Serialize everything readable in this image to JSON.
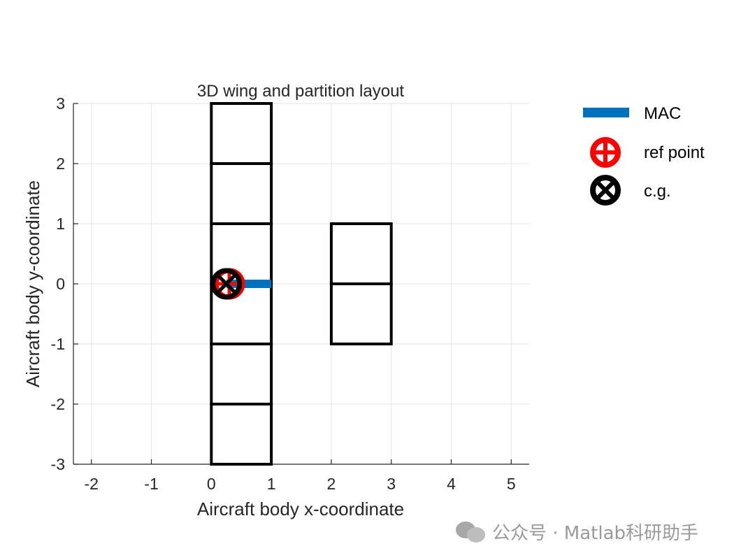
{
  "chart_data": {
    "type": "line",
    "title": "3D wing and partition layout",
    "xlabel": "Aircraft body x-coordinate",
    "ylabel": "Aircraft body y-coordinate",
    "xlim": [
      -2.3,
      5.3
    ],
    "ylim": [
      -3,
      3
    ],
    "xticks": [
      -2,
      -1,
      0,
      1,
      2,
      3,
      4,
      5
    ],
    "yticks": [
      -3,
      -2,
      -1,
      0,
      1,
      2,
      3
    ],
    "grid": true,
    "legend_position": "outside-right",
    "series": [
      {
        "name": "wing partitions",
        "kind": "rectangles",
        "color": "#000000",
        "rects": [
          {
            "x": [
              0,
              1
            ],
            "y": [
              2,
              3
            ]
          },
          {
            "x": [
              0,
              1
            ],
            "y": [
              1,
              2
            ]
          },
          {
            "x": [
              0,
              1
            ],
            "y": [
              0,
              1
            ]
          },
          {
            "x": [
              0,
              1
            ],
            "y": [
              -1,
              0
            ]
          },
          {
            "x": [
              0,
              1
            ],
            "y": [
              -2,
              -1
            ]
          },
          {
            "x": [
              0,
              1
            ],
            "y": [
              -3,
              -2
            ]
          },
          {
            "x": [
              2,
              3
            ],
            "y": [
              0,
              1
            ]
          },
          {
            "x": [
              2,
              3
            ],
            "y": [
              -1,
              0
            ]
          }
        ]
      },
      {
        "name": "MAC",
        "kind": "line",
        "color": "#0072BD",
        "x": [
          0.25,
          1.0
        ],
        "y": [
          0,
          0
        ]
      },
      {
        "name": "ref point",
        "kind": "marker",
        "marker": "circle-plus",
        "color": "#FF0000",
        "x": 0.3,
        "y": 0
      },
      {
        "name": "c.g.",
        "kind": "marker",
        "marker": "circle-x",
        "color": "#000000",
        "x": 0.25,
        "y": 0
      }
    ]
  },
  "legend": {
    "mac_label": "MAC",
    "ref_label": "ref point",
    "cg_label": "c.g."
  },
  "watermark": {
    "text": "公众号 · Matlab科研助手"
  }
}
